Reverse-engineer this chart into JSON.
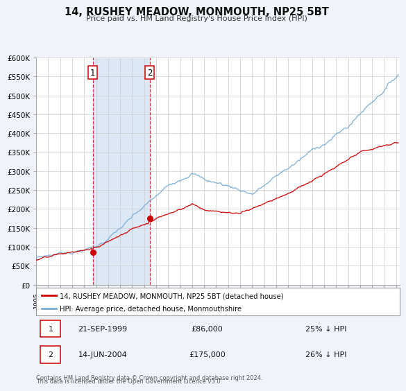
{
  "title": "14, RUSHEY MEADOW, MONMOUTH, NP25 5BT",
  "subtitle": "Price paid vs. HM Land Registry's House Price Index (HPI)",
  "bg_color": "#f0f4fa",
  "plot_bg_color": "#ffffff",
  "grid_color": "#cccccc",
  "red_line_color": "#cc0000",
  "blue_line_color": "#7aaed6",
  "shade_color": "#dce8f5",
  "sale1_date_num": 1999.72,
  "sale1_price": 86000,
  "sale2_date_num": 2004.45,
  "sale2_price": 175000,
  "sale1_date_str": "21-SEP-1999",
  "sale2_date_str": "14-JUN-2004",
  "sale1_pct": "25% ↓ HPI",
  "sale2_pct": "26% ↓ HPI",
  "ylabel_ticks": [
    "£0",
    "£50K",
    "£100K",
    "£150K",
    "£200K",
    "£250K",
    "£300K",
    "£350K",
    "£400K",
    "£450K",
    "£500K",
    "£550K",
    "£600K"
  ],
  "ytick_values": [
    0,
    50000,
    100000,
    150000,
    200000,
    250000,
    300000,
    350000,
    400000,
    450000,
    500000,
    550000,
    600000
  ],
  "xmin": 1995.0,
  "xmax": 2025.3,
  "ymin": 0,
  "ymax": 600000,
  "legend_label_red": "14, RUSHEY MEADOW, MONMOUTH, NP25 5BT (detached house)",
  "legend_label_blue": "HPI: Average price, detached house, Monmouthshire",
  "footnote1": "Contains HM Land Registry data © Crown copyright and database right 2024.",
  "footnote2": "This data is licensed under the Open Government Licence v3.0."
}
